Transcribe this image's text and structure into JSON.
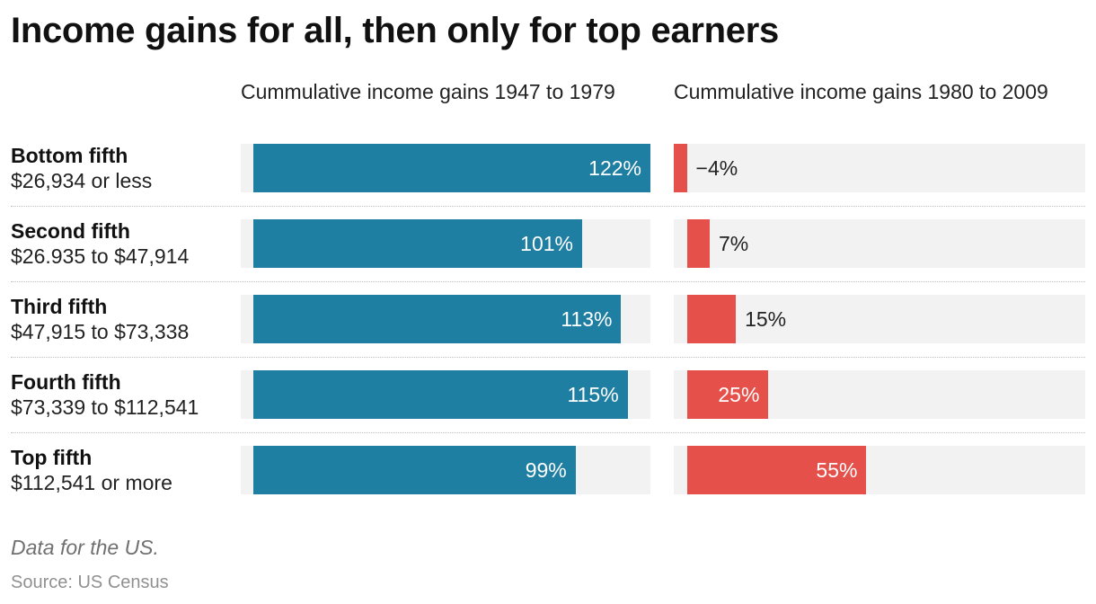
{
  "title": "Income gains for all, then only for top earners",
  "columns": [
    "Cummulative income gains 1947 to 1979",
    "Cummulative income gains 1980 to 2009"
  ],
  "footer": {
    "note": "Data for the US.",
    "source": "Source: US Census"
  },
  "colors": {
    "left_bar": "#1f7fa3",
    "right_bar": "#e5504a",
    "panel_background": "#f2f2f2"
  },
  "chart_data": {
    "type": "bar",
    "orientation": "horizontal",
    "categories": [
      "Bottom fifth",
      "Second fifth",
      "Third fifth",
      "Fourth fifth",
      "Top fifth"
    ],
    "category_subtitles": [
      "$26,934 or less",
      "$26.935 to $47,914",
      "$47,915 to $73,338",
      "$73,339 to $112,541",
      "$112,541 or more"
    ],
    "series": [
      {
        "name": "Cummulative income gains 1947 to 1979",
        "values": [
          122,
          101,
          113,
          115,
          99
        ],
        "labels": [
          "122%",
          "101%",
          "113%",
          "115%",
          "99%"
        ],
        "color": "#1f7fa3",
        "xlim": [
          -4,
          122
        ]
      },
      {
        "name": "Cummulative income gains 1980 to 2009",
        "values": [
          -4,
          7,
          15,
          25,
          55
        ],
        "labels": [
          "−4%",
          "7%",
          "15%",
          "25%",
          "55%"
        ],
        "color": "#e5504a",
        "xlim": [
          -4,
          122
        ]
      }
    ],
    "grid": false,
    "legend": "none"
  }
}
